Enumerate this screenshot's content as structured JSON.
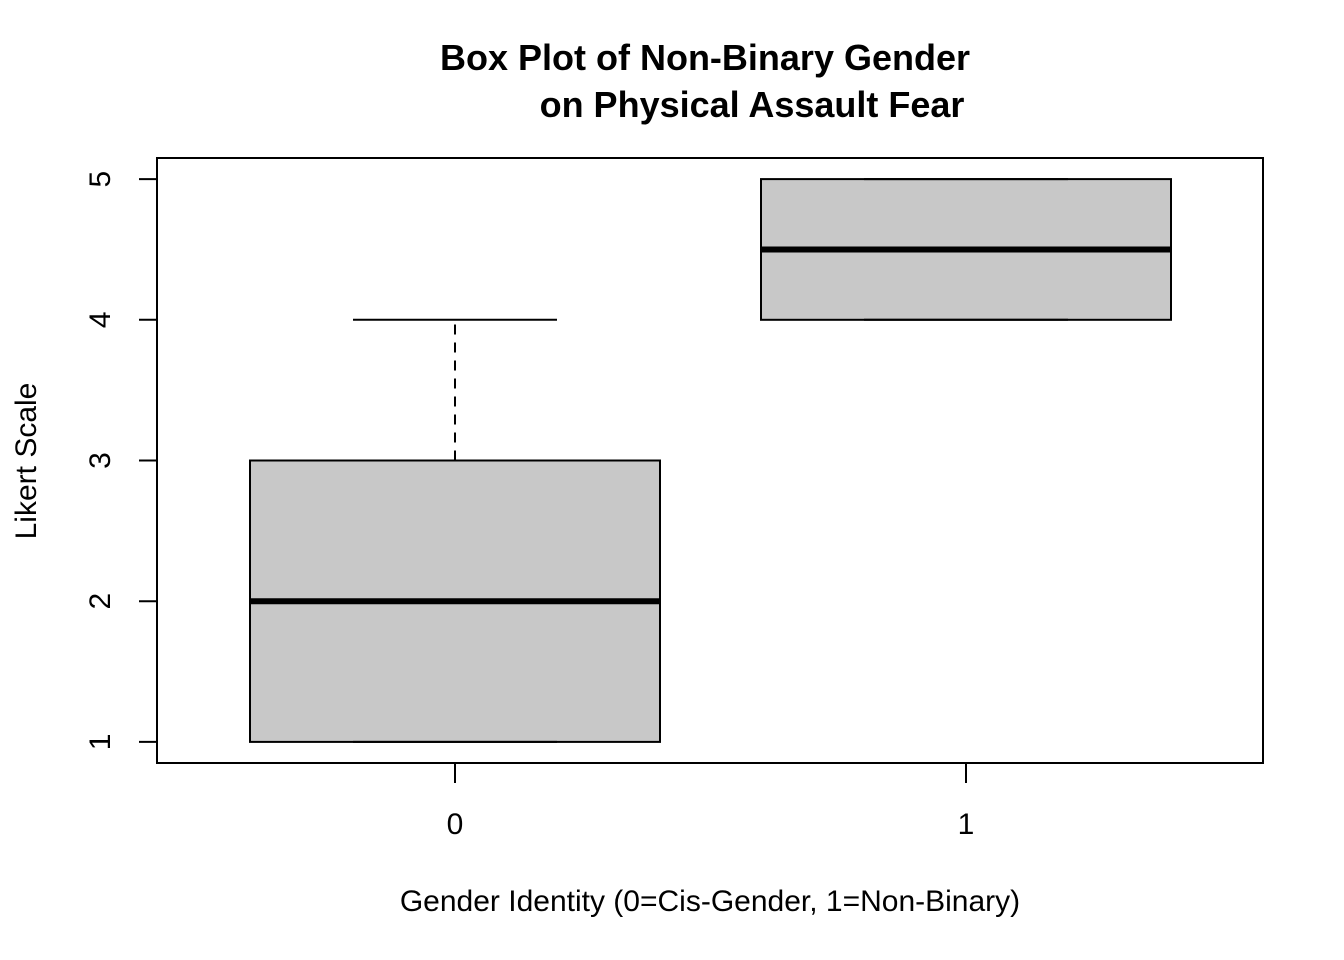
{
  "chart_data": {
    "type": "box",
    "title_lines": [
      "Box Plot of Non-Binary Gender",
      "on Physical Assault Fear"
    ],
    "xlabel": "Gender Identity (0=Cis-Gender, 1=Non-Binary)",
    "ylabel": "Likert Scale",
    "categories": [
      "0",
      "1"
    ],
    "y_ticks": [
      "1",
      "2",
      "3",
      "4",
      "5"
    ],
    "ylim": [
      0.85,
      5.15
    ],
    "boxes": [
      {
        "category": "0",
        "min": 1,
        "q1": 1,
        "median": 2,
        "q3": 3,
        "max": 4
      },
      {
        "category": "1",
        "min": 4,
        "q1": 4,
        "median": 4.5,
        "q3": 5,
        "max": 5
      }
    ],
    "box_fill": "#c8c8c8",
    "grid": false,
    "legend": "none"
  }
}
